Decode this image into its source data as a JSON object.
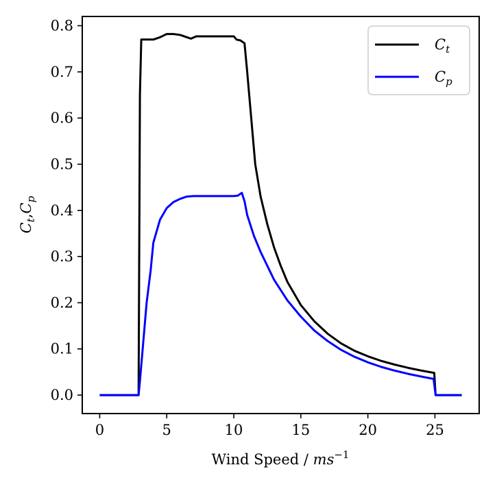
{
  "chart_data": {
    "type": "line",
    "title": "",
    "xlabel": "Wind Speed / ",
    "xlabel_unit": "ms",
    "xlabel_exp": "−1",
    "ylabel": "C_t,C_p",
    "xlim": [
      -1.3,
      28.3
    ],
    "ylim": [
      -0.04,
      0.82
    ],
    "xticks": [
      0,
      5,
      10,
      15,
      20,
      25
    ],
    "xtick_labels": [
      "0",
      "5",
      "10",
      "15",
      "20",
      "25"
    ],
    "yticks": [
      0.0,
      0.1,
      0.2,
      0.3,
      0.4,
      0.5,
      0.6,
      0.7,
      0.8
    ],
    "ytick_labels": [
      "0.0",
      "0.1",
      "0.2",
      "0.3",
      "0.4",
      "0.5",
      "0.6",
      "0.7",
      "0.8"
    ],
    "grid": false,
    "legend_position": "top-right",
    "series": [
      {
        "name": "C_t",
        "legend_main": "C",
        "legend_sub": "t",
        "color": "#000000",
        "points": [
          [
            0,
            0
          ],
          [
            2.9,
            0
          ],
          [
            3.0,
            0.65
          ],
          [
            3.1,
            0.77
          ],
          [
            4.0,
            0.77
          ],
          [
            4.5,
            0.775
          ],
          [
            5.0,
            0.782
          ],
          [
            5.5,
            0.782
          ],
          [
            6.0,
            0.78
          ],
          [
            6.5,
            0.775
          ],
          [
            6.8,
            0.772
          ],
          [
            7.2,
            0.777
          ],
          [
            8,
            0.777
          ],
          [
            9,
            0.777
          ],
          [
            10,
            0.777
          ],
          [
            10.2,
            0.77
          ],
          [
            10.5,
            0.768
          ],
          [
            10.8,
            0.762
          ],
          [
            11.0,
            0.7
          ],
          [
            11.3,
            0.6
          ],
          [
            11.6,
            0.5
          ],
          [
            12.0,
            0.43
          ],
          [
            12.5,
            0.37
          ],
          [
            13,
            0.32
          ],
          [
            13.5,
            0.28
          ],
          [
            14,
            0.245
          ],
          [
            15,
            0.195
          ],
          [
            16,
            0.16
          ],
          [
            17,
            0.133
          ],
          [
            18,
            0.112
          ],
          [
            19,
            0.096
          ],
          [
            20,
            0.084
          ],
          [
            21,
            0.074
          ],
          [
            22,
            0.066
          ],
          [
            23,
            0.059
          ],
          [
            24,
            0.053
          ],
          [
            24.95,
            0.048
          ],
          [
            25.05,
            0.0
          ],
          [
            27,
            0.0
          ]
        ]
      },
      {
        "name": "C_p",
        "legend_main": "C",
        "legend_sub": "p",
        "color": "#0000ff",
        "points": [
          [
            0,
            0
          ],
          [
            2.9,
            0
          ],
          [
            3.0,
            0.03
          ],
          [
            3.5,
            0.2
          ],
          [
            3.8,
            0.27
          ],
          [
            4.0,
            0.33
          ],
          [
            4.5,
            0.38
          ],
          [
            5.0,
            0.405
          ],
          [
            5.5,
            0.418
          ],
          [
            6.0,
            0.425
          ],
          [
            6.5,
            0.43
          ],
          [
            7,
            0.431
          ],
          [
            8,
            0.431
          ],
          [
            9,
            0.431
          ],
          [
            10,
            0.431
          ],
          [
            10.3,
            0.432
          ],
          [
            10.6,
            0.438
          ],
          [
            10.8,
            0.42
          ],
          [
            11.0,
            0.39
          ],
          [
            11.5,
            0.345
          ],
          [
            12.0,
            0.31
          ],
          [
            12.5,
            0.28
          ],
          [
            13,
            0.25
          ],
          [
            14,
            0.205
          ],
          [
            15,
            0.17
          ],
          [
            16,
            0.14
          ],
          [
            17,
            0.117
          ],
          [
            18,
            0.098
          ],
          [
            19,
            0.083
          ],
          [
            20,
            0.071
          ],
          [
            21,
            0.061
          ],
          [
            22,
            0.053
          ],
          [
            23,
            0.046
          ],
          [
            24,
            0.04
          ],
          [
            24.9,
            0.035
          ],
          [
            25.05,
            0.0
          ],
          [
            27,
            0.0
          ]
        ]
      }
    ]
  }
}
